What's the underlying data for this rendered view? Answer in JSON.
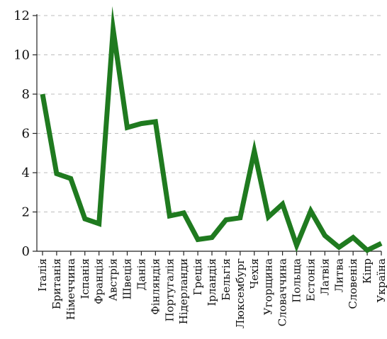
{
  "chart_data": {
    "type": "line",
    "title": "",
    "xlabel": "",
    "ylabel": "",
    "ylim": [
      0,
      12
    ],
    "yticks": [
      0,
      2,
      4,
      6,
      8,
      10,
      12
    ],
    "grid": "horizontal dashed",
    "categories": [
      "Італія",
      "Британія",
      "Німеччина",
      "Іспанія",
      "Франція",
      "Австрія",
      "Швеція",
      "Данія",
      "Фінляндія",
      "Португалія",
      "Нідерланди",
      "Греція",
      "Ірландія",
      "Бельгія",
      "Люксембург",
      "Чехія",
      "Угорщина",
      "Словаччина",
      "Польща",
      "Естонія",
      "Латвія",
      "Литва",
      "Словенія",
      "Кіпр",
      "Україна"
    ],
    "series": [
      {
        "color": "#1f7a1f",
        "values": [
          8.0,
          3.95,
          3.7,
          1.65,
          1.4,
          11.3,
          6.3,
          6.5,
          6.6,
          1.8,
          1.95,
          0.6,
          0.7,
          1.6,
          1.7,
          5.1,
          1.75,
          2.4,
          0.3,
          2.05,
          0.8,
          0.2,
          0.7,
          0.05,
          0.4
        ]
      }
    ]
  }
}
